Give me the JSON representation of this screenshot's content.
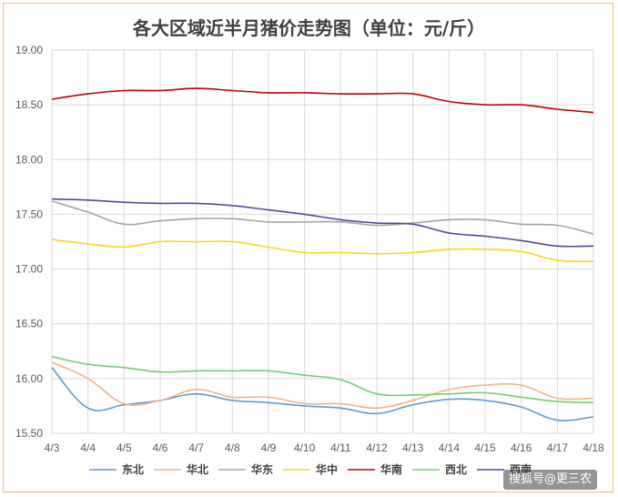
{
  "chart_data": {
    "type": "line",
    "title": "各大区域近半月猪价走势图（单位：元/斤）",
    "x": [
      "4/3",
      "4/4",
      "4/5",
      "4/6",
      "4/7",
      "4/8",
      "4/9",
      "4/10",
      "4/11",
      "4/12",
      "4/13",
      "4/14",
      "4/15",
      "4/16",
      "4/17",
      "4/18"
    ],
    "ylim": [
      15.5,
      19.0
    ],
    "yticks": [
      "15.50",
      "16.00",
      "16.50",
      "17.00",
      "17.50",
      "18.00",
      "18.50",
      "19.00"
    ],
    "grid": true,
    "legend_position": "bottom",
    "series": [
      {
        "name": "东北",
        "color": "#5b9bd5",
        "values": [
          16.1,
          15.73,
          15.76,
          15.8,
          15.86,
          15.8,
          15.78,
          15.75,
          15.73,
          15.68,
          15.76,
          15.81,
          15.8,
          15.74,
          15.62,
          15.65
        ]
      },
      {
        "name": "华北",
        "color": "#f4b183",
        "values": [
          16.15,
          16.0,
          15.77,
          15.8,
          15.9,
          15.83,
          15.83,
          15.77,
          15.77,
          15.73,
          15.8,
          15.9,
          15.94,
          15.94,
          15.82,
          15.82
        ]
      },
      {
        "name": "华东",
        "color": "#a5a5a5",
        "values": [
          17.62,
          17.52,
          17.41,
          17.44,
          17.46,
          17.46,
          17.43,
          17.43,
          17.43,
          17.4,
          17.42,
          17.45,
          17.45,
          17.41,
          17.4,
          17.32
        ]
      },
      {
        "name": "华中",
        "color": "#ffd21e",
        "values": [
          17.27,
          17.23,
          17.2,
          17.25,
          17.25,
          17.25,
          17.2,
          17.15,
          17.15,
          17.14,
          17.15,
          17.18,
          17.18,
          17.16,
          17.08,
          17.07
        ]
      },
      {
        "name": "华南",
        "color": "#c00000",
        "values": [
          18.55,
          18.6,
          18.63,
          18.63,
          18.65,
          18.63,
          18.61,
          18.61,
          18.6,
          18.6,
          18.6,
          18.53,
          18.5,
          18.5,
          18.46,
          18.43
        ]
      },
      {
        "name": "西北",
        "color": "#70d070",
        "values": [
          16.2,
          16.13,
          16.1,
          16.06,
          16.07,
          16.07,
          16.07,
          16.03,
          15.99,
          15.86,
          15.85,
          15.86,
          15.87,
          15.83,
          15.79,
          15.78
        ]
      },
      {
        "name": "西南",
        "color": "#5448a0",
        "values": [
          17.64,
          17.63,
          17.61,
          17.6,
          17.6,
          17.58,
          17.54,
          17.5,
          17.45,
          17.42,
          17.41,
          17.33,
          17.3,
          17.26,
          17.21,
          17.21
        ]
      }
    ]
  },
  "watermark": "搜狐号@更三农"
}
